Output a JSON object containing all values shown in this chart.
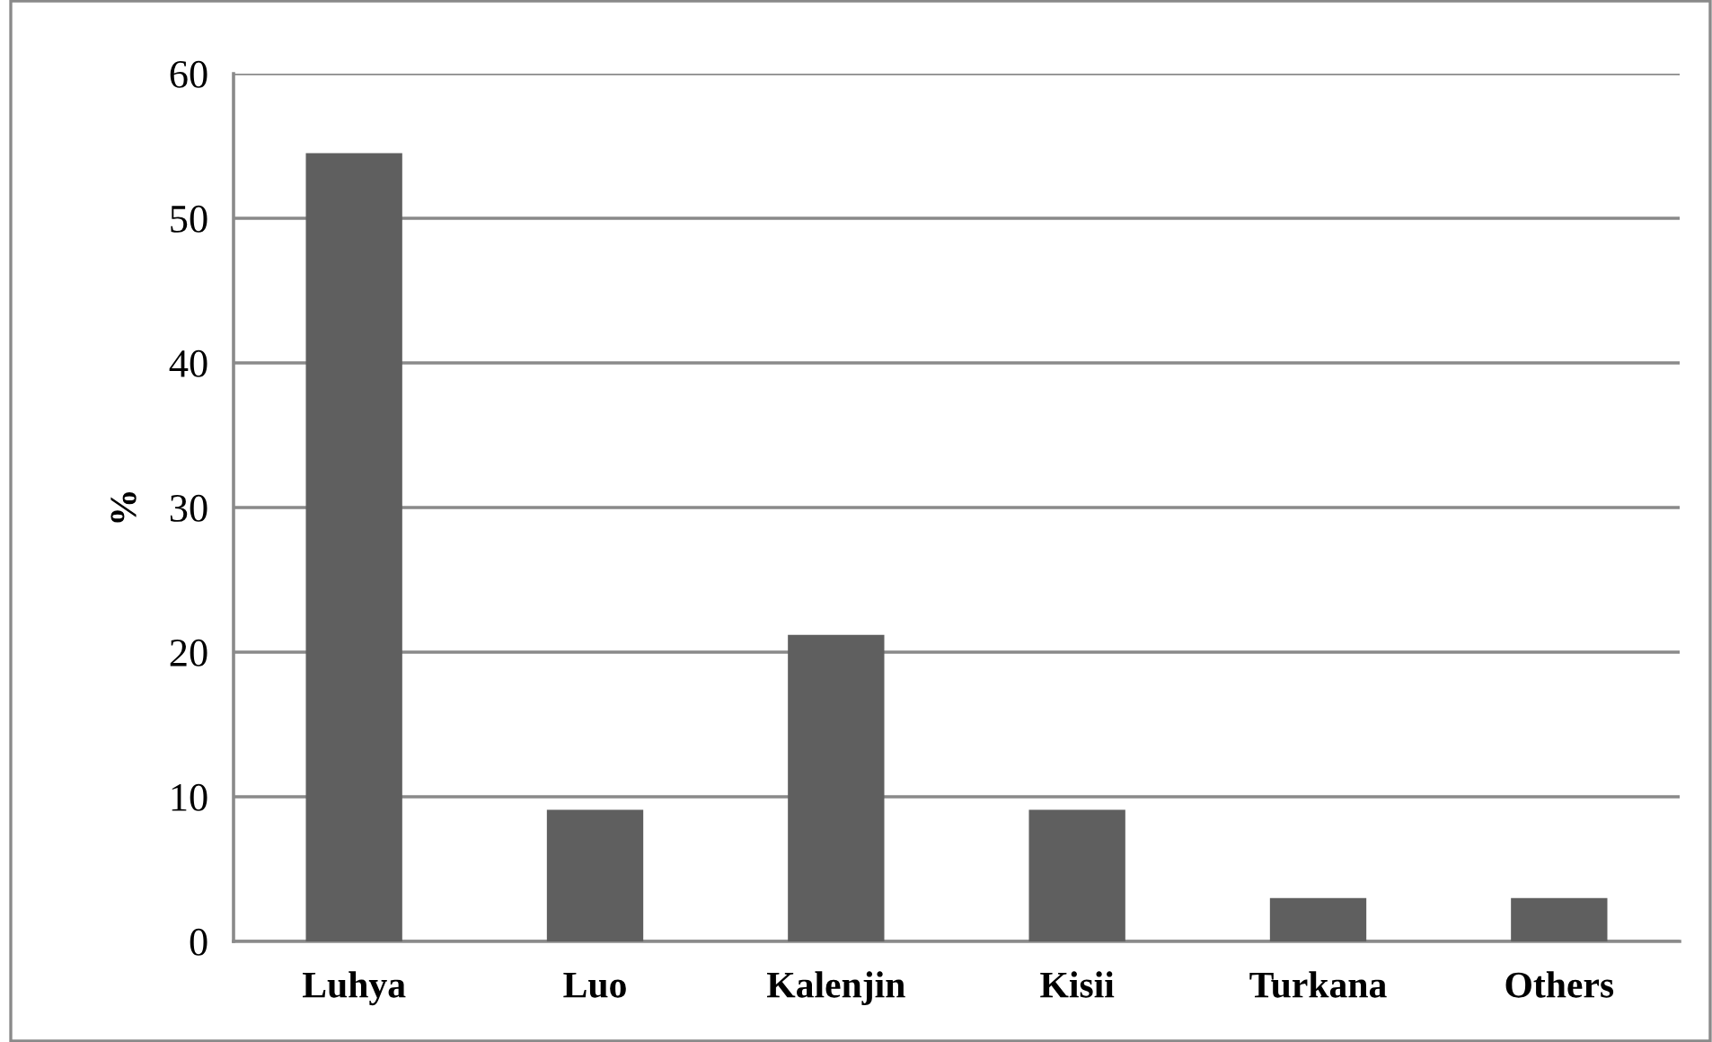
{
  "chart_data": {
    "type": "bar",
    "categories": [
      "Luhya",
      "Luo",
      "Kalenjin",
      "Kisii",
      "Turkana",
      "Others"
    ],
    "values": [
      54.5,
      9.1,
      21.2,
      9.1,
      3.0,
      3.0
    ],
    "color": "#5f5f5f",
    "ylabel": "%",
    "ylim": [
      0,
      60
    ],
    "yticks": [
      0,
      10,
      20,
      30,
      40,
      50,
      60
    ],
    "grid": "y",
    "legend": false
  }
}
